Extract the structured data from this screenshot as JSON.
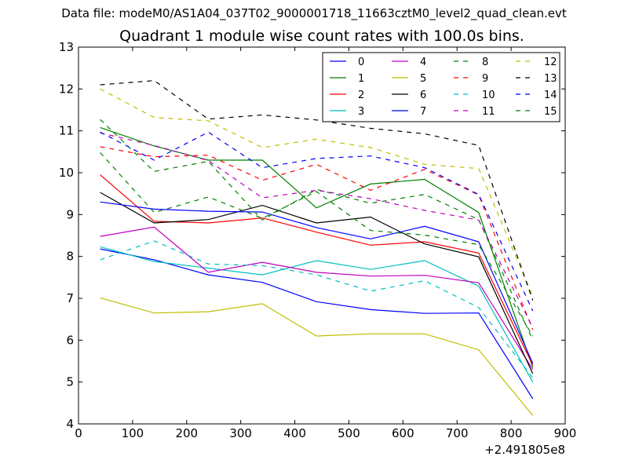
{
  "suptitle": "Data file: modeM0/AS1A04_037T02_9000001718_11663cztM0_level2_quad_clean.evt",
  "chart_data": {
    "type": "line",
    "title": "Quadrant 1 module wise count rates with 100.0s bins.",
    "xlabel": "",
    "ylabel": "",
    "x_offset_label": "+2.491805e8",
    "xlim": [
      0,
      900
    ],
    "ylim": [
      4,
      13
    ],
    "xticks": [
      0,
      100,
      200,
      300,
      400,
      500,
      600,
      700,
      800,
      900
    ],
    "yticks": [
      4,
      5,
      6,
      7,
      8,
      9,
      10,
      11,
      12,
      13
    ],
    "grid": false,
    "legend_placement": "top-right",
    "legend_columns": 4,
    "x": [
      40,
      140,
      240,
      340,
      440,
      540,
      640,
      740,
      840
    ],
    "series": [
      {
        "name": "0",
        "color": "#0000ff",
        "style": "solid",
        "values": [
          8.18,
          7.92,
          7.56,
          7.38,
          6.92,
          6.73,
          6.64,
          6.65,
          4.6
        ]
      },
      {
        "name": "1",
        "color": "#008000",
        "style": "solid",
        "values": [
          11.08,
          10.64,
          10.3,
          10.3,
          9.16,
          9.73,
          9.84,
          9.05,
          5.35
        ]
      },
      {
        "name": "2",
        "color": "#ff0000",
        "style": "solid",
        "values": [
          9.95,
          8.84,
          8.8,
          8.92,
          8.58,
          8.27,
          8.35,
          8.08,
          5.4
        ]
      },
      {
        "name": "3",
        "color": "#00bfbf",
        "style": "solid",
        "values": [
          8.23,
          7.88,
          7.72,
          7.56,
          7.9,
          7.69,
          7.9,
          7.29,
          5.0
        ]
      },
      {
        "name": "4",
        "color": "#bf00bf",
        "style": "solid",
        "values": [
          8.48,
          8.7,
          7.62,
          7.86,
          7.62,
          7.53,
          7.55,
          7.37,
          5.3
        ]
      },
      {
        "name": "5",
        "color": "#bfbf00",
        "style": "solid",
        "values": [
          7.01,
          6.65,
          6.68,
          6.87,
          6.1,
          6.15,
          6.15,
          5.77,
          4.2
        ]
      },
      {
        "name": "6",
        "color": "#000000",
        "style": "solid",
        "values": [
          9.53,
          8.8,
          8.88,
          9.22,
          8.8,
          8.94,
          8.3,
          7.99,
          5.2
        ]
      },
      {
        "name": "7",
        "color": "#0000ff",
        "style": "solid",
        "values": [
          9.3,
          9.13,
          9.08,
          9.06,
          8.69,
          8.42,
          8.72,
          8.35,
          5.45
        ]
      },
      {
        "name": "8",
        "color": "#008000",
        "style": "dashed",
        "values": [
          11.27,
          10.03,
          10.27,
          8.87,
          9.6,
          9.27,
          9.48,
          8.88,
          6.0
        ]
      },
      {
        "name": "9",
        "color": "#ff0000",
        "style": "dashed",
        "values": [
          10.62,
          10.38,
          10.42,
          9.82,
          10.2,
          9.58,
          10.08,
          9.47,
          6.25
        ]
      },
      {
        "name": "10",
        "color": "#00bfbf",
        "style": "dashed",
        "values": [
          7.92,
          8.37,
          7.82,
          7.78,
          7.56,
          7.17,
          7.42,
          6.78,
          5.1
        ]
      },
      {
        "name": "11",
        "color": "#bf00bf",
        "style": "dashed",
        "values": [
          10.95,
          10.65,
          10.29,
          9.4,
          9.58,
          9.38,
          9.1,
          8.87,
          6.3
        ]
      },
      {
        "name": "12",
        "color": "#bfbf00",
        "style": "dashed",
        "values": [
          12.0,
          11.32,
          11.24,
          10.6,
          10.8,
          10.6,
          10.2,
          10.1,
          7.05
        ]
      },
      {
        "name": "13",
        "color": "#000000",
        "style": "dashed",
        "values": [
          12.1,
          12.2,
          11.28,
          11.38,
          11.26,
          11.06,
          10.93,
          10.65,
          6.95
        ]
      },
      {
        "name": "14",
        "color": "#0000ff",
        "style": "dashed",
        "values": [
          10.97,
          10.3,
          10.97,
          10.12,
          10.34,
          10.4,
          10.12,
          9.48,
          6.7
        ]
      },
      {
        "name": "15",
        "color": "#008000",
        "style": "dashed",
        "values": [
          10.48,
          9.05,
          9.42,
          8.91,
          9.55,
          8.62,
          8.51,
          8.28,
          6.1
        ]
      }
    ]
  }
}
